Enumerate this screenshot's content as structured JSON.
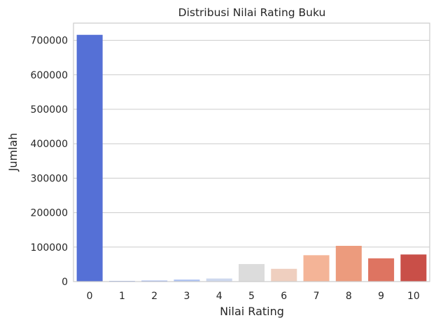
{
  "chart_data": {
    "type": "bar",
    "title": "Distribusi Nilai Rating Buku",
    "xlabel": "Nilai Rating",
    "ylabel": "Jumlah",
    "categories": [
      "0",
      "1",
      "2",
      "3",
      "4",
      "5",
      "6",
      "7",
      "8",
      "9",
      "10"
    ],
    "values": [
      716000,
      1800,
      2800,
      5800,
      8900,
      50900,
      37000,
      76500,
      103700,
      67500,
      78600
    ],
    "colors": [
      "#5570d6",
      "#7090e8",
      "#8fa8ee",
      "#aec3f2",
      "#cdd8ee",
      "#dcdcdc",
      "#efcfbf",
      "#f4b497",
      "#ec9b7d",
      "#de7461",
      "#c94f48"
    ],
    "ylim": [
      0,
      750000
    ],
    "yticks": [
      0,
      100000,
      200000,
      300000,
      400000,
      500000,
      600000,
      700000
    ],
    "ytick_labels": [
      "0",
      "100000",
      "200000",
      "300000",
      "400000",
      "500000",
      "600000",
      "700000"
    ],
    "grid": "horizontal",
    "legend": "none"
  }
}
